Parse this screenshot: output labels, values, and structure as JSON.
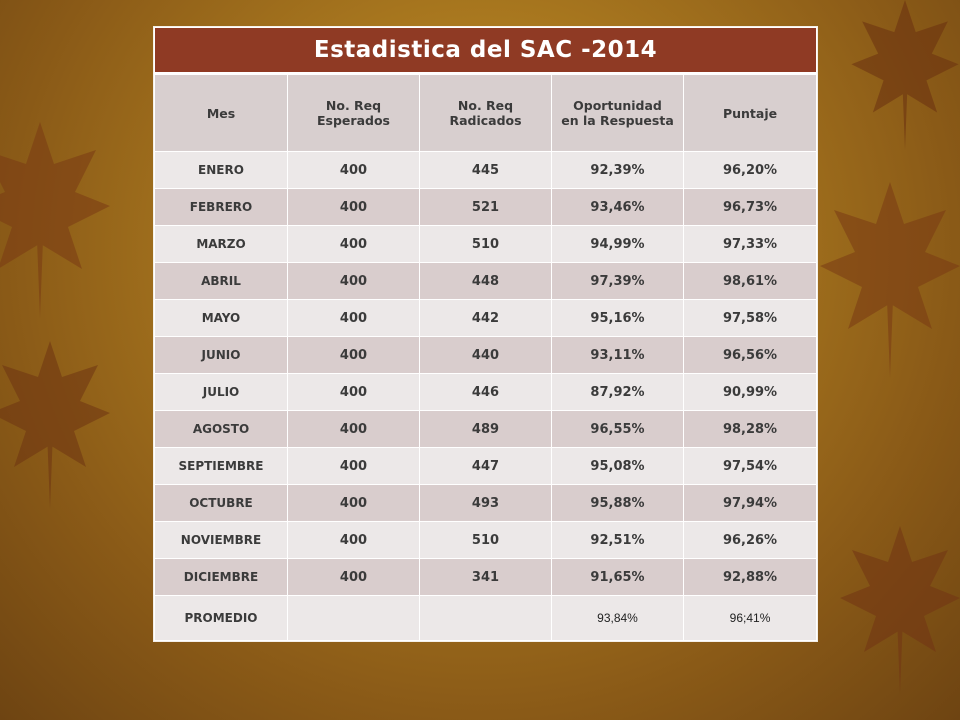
{
  "table": {
    "title": "Estadistica  del  SAC  -2014",
    "headers": [
      "Mes",
      "No.  Req\nEsperados",
      "No.  Req\nRadicados",
      "Oportunidad\nen la Respuesta",
      "Puntaje"
    ],
    "rows": [
      {
        "mes": "ENERO",
        "esperados": "400",
        "radicados": "445",
        "oportunidad": "92,39%",
        "puntaje": "96,20%"
      },
      {
        "mes": "FEBRERO",
        "esperados": "400",
        "radicados": "521",
        "oportunidad": "93,46%",
        "puntaje": "96,73%"
      },
      {
        "mes": "MARZO",
        "esperados": "400",
        "radicados": "510",
        "oportunidad": "94,99%",
        "puntaje": "97,33%"
      },
      {
        "mes": "ABRIL",
        "esperados": "400",
        "radicados": "448",
        "oportunidad": "97,39%",
        "puntaje": "98,61%"
      },
      {
        "mes": "MAYO",
        "esperados": "400",
        "radicados": "442",
        "oportunidad": "95,16%",
        "puntaje": "97,58%"
      },
      {
        "mes": "JUNIO",
        "esperados": "400",
        "radicados": "440",
        "oportunidad": "93,11%",
        "puntaje": "96,56%"
      },
      {
        "mes": "JULIO",
        "esperados": "400",
        "radicados": "446",
        "oportunidad": "87,92%",
        "puntaje": "90,99%"
      },
      {
        "mes": "AGOSTO",
        "esperados": "400",
        "radicados": "489",
        "oportunidad": "96,55%",
        "puntaje": "98,28%"
      },
      {
        "mes": "SEPTIEMBRE",
        "esperados": "400",
        "radicados": "447",
        "oportunidad": "95,08%",
        "puntaje": "97,54%"
      },
      {
        "mes": "OCTUBRE",
        "esperados": "400",
        "radicados": "493",
        "oportunidad": "95,88%",
        "puntaje": "97,94%"
      },
      {
        "mes": "NOVIEMBRE",
        "esperados": "400",
        "radicados": "510",
        "oportunidad": "92,51%",
        "puntaje": "96,26%"
      },
      {
        "mes": "DICIEMBRE",
        "esperados": "400",
        "radicados": "341",
        "oportunidad": "91,65%",
        "puntaje": "92,88%"
      }
    ],
    "average": {
      "mes": "PROMEDIO",
      "esperados": "",
      "radicados": "",
      "oportunidad": "93,84%",
      "puntaje": "96;41%"
    }
  },
  "colors": {
    "title_bg": "#8f3a24",
    "header_bg": "#d8cfcf",
    "row_light": "#ece8e8",
    "row_dark": "#d9cdcd",
    "background": "#a9781f"
  },
  "decoration": {
    "background_icon": "maple-leaf-icon"
  }
}
